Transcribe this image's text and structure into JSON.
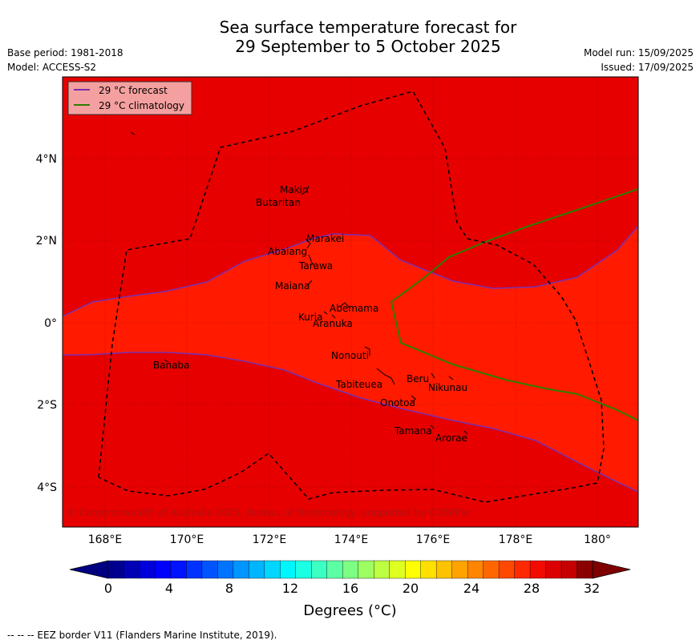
{
  "title_line1": "Sea surface temperature forecast for",
  "title_line2": "29 September to 5 October 2025",
  "meta_left": [
    "Base period: 1981-2018",
    "Model: ACCESS-S2"
  ],
  "meta_right": [
    "Model run: 15/09/2025",
    "Issued: 17/09/2025"
  ],
  "legend": [
    {
      "label": "29 °C  forecast",
      "color": "#7a2fb0"
    },
    {
      "label": "29 °C  climatology",
      "color": "#2e7d00"
    }
  ],
  "lon_labels": [
    "168°E",
    "170°E",
    "172°E",
    "174°E",
    "176°E",
    "178°E",
    "180°"
  ],
  "lat_labels": [
    "4°N",
    "2°N",
    "0°",
    "2°S",
    "4°S"
  ],
  "islands": [
    "Makin",
    "Butaritan",
    "Marakei",
    "Abaiang",
    "Tarawa",
    "Maiana",
    "Abemama",
    "Kuria",
    "Aranuka",
    "Nonouti",
    "Banaba",
    "Tabiteuea",
    "Beru",
    "Nikunau",
    "Onotoa",
    "Tamana",
    "Arorae"
  ],
  "copyright": "© Commonwealth of Australia 2025, Bureau of Meteorology, supported by COSPPac",
  "colorbar": {
    "ticks": [
      "0",
      "4",
      "8",
      "12",
      "16",
      "20",
      "24",
      "28",
      "32"
    ],
    "label": "Degrees ($^\\circ$C)",
    "label_display": "Degrees (°C)",
    "colors": [
      "#00008f",
      "#0000b5",
      "#0000da",
      "#0000ff",
      "#0013ff",
      "#0033ff",
      "#0054ff",
      "#0074ff",
      "#0095ff",
      "#00b5ff",
      "#00d6ff",
      "#00f6ff",
      "#1bffe4",
      "#3cffc3",
      "#5cffa3",
      "#7cff83",
      "#9dff62",
      "#bdff42",
      "#deff21",
      "#feff01",
      "#ffe000",
      "#ffc200",
      "#ffa300",
      "#ff8500",
      "#ff6600",
      "#ff4800",
      "#ff2900",
      "#f30b00",
      "#dc0000",
      "#c60000",
      "#8b0000"
    ],
    "under_color": "#000080",
    "over_color": "#7f0000"
  },
  "fields": {
    "warm_color": "#e60000",
    "mid_color": "#ff1a00"
  },
  "footer": "--  --  -- EEZ border V11 (Flanders Marine Institute, 2019)."
}
